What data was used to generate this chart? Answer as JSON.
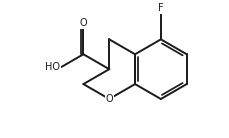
{
  "background": "#ffffff",
  "line_color": "#1a1a1a",
  "line_width": 1.4,
  "font_size_label": 7.0,
  "xlim": [
    0,
    10
  ],
  "ylim": [
    0,
    6
  ],
  "figsize": [
    2.3,
    1.38
  ],
  "dpi": 100
}
